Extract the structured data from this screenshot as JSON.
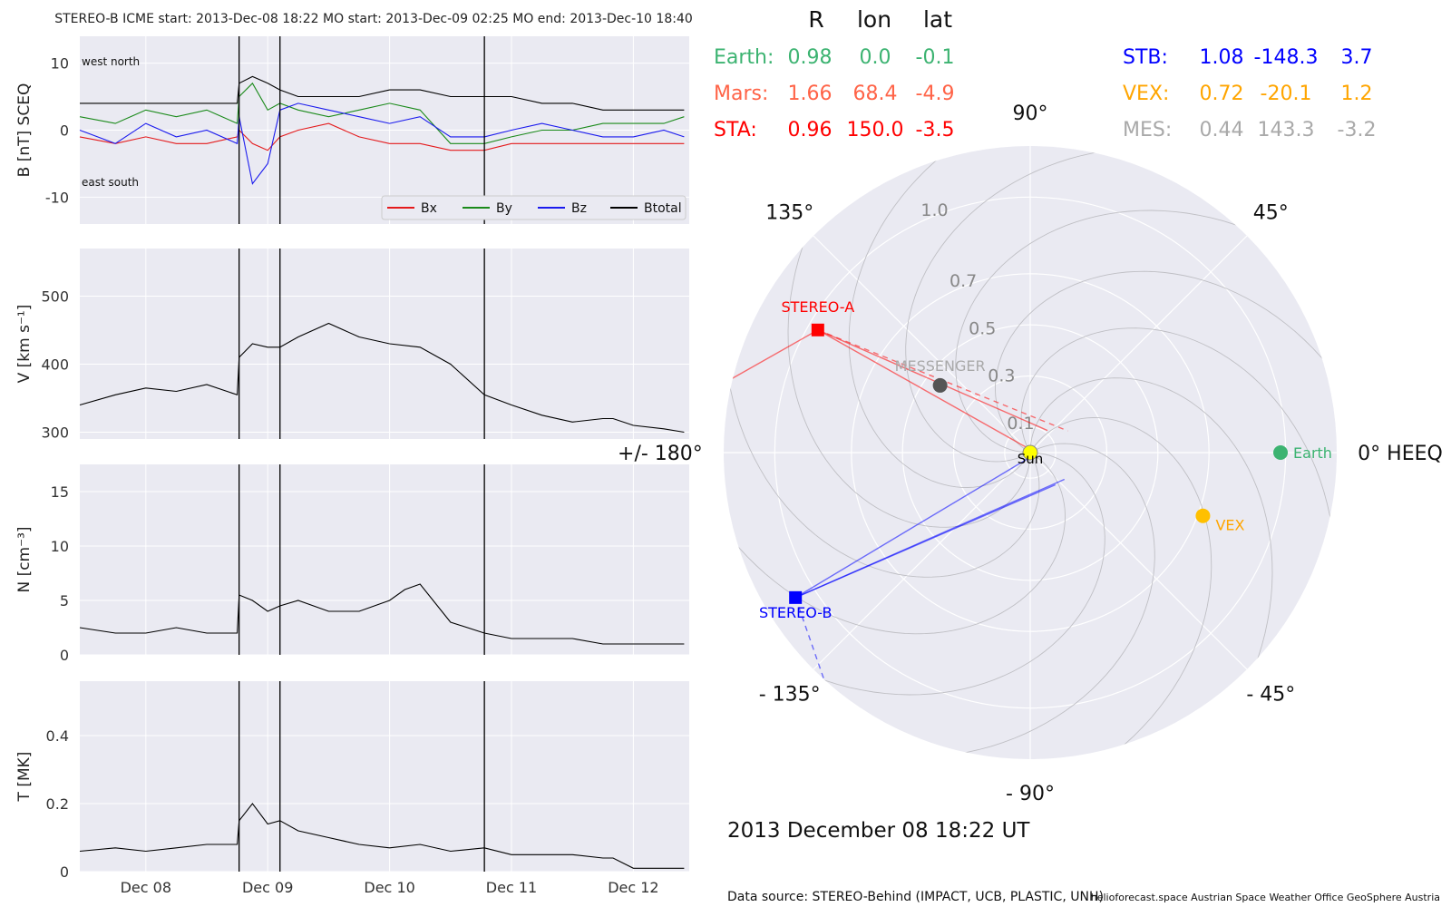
{
  "header": "STEREO-B    ICME start: 2013-Dec-08 18:22   MO start: 2013-Dec-09 02:25   MO end: 2013-Dec-10 18:40",
  "footer": {
    "source": "Data source: STEREO-Behind (IMPACT, UCB, PLASTIC, UNH)",
    "credits": "helioforecast.space   Austrian Space Weather Office   GeoSphere Austria"
  },
  "time_axis": {
    "start": "2013-12-07T11:00",
    "end": "2013-12-12T11:00",
    "ticks": [
      {
        "label": "Dec 08",
        "t": "2013-12-08T00:00"
      },
      {
        "label": "Dec 09",
        "t": "2013-12-09T00:00"
      },
      {
        "label": "Dec 10",
        "t": "2013-12-10T00:00"
      },
      {
        "label": "Dec 11",
        "t": "2013-12-11T00:00"
      },
      {
        "label": "Dec 12",
        "t": "2013-12-12T00:00"
      }
    ],
    "event_lines": [
      "2013-12-08T18:22",
      "2013-12-09T02:25",
      "2013-12-10T18:40"
    ]
  },
  "chart_data": [
    {
      "type": "line",
      "id": "b-field",
      "ylabel": "B [nT] SCEQ",
      "ylim": [
        -14,
        14
      ],
      "yticks": [
        10,
        0,
        -10
      ],
      "grid": true,
      "corner_labels": {
        "top": "west    north",
        "bottom": "east    south"
      },
      "legend": "bottom-right",
      "x": [
        "2013-12-07T11:00",
        "2013-12-07T18:00",
        "2013-12-08T00:00",
        "2013-12-08T06:00",
        "2013-12-08T12:00",
        "2013-12-08T18:00",
        "2013-12-08T18:22",
        "2013-12-08T21:00",
        "2013-12-09T00:00",
        "2013-12-09T02:25",
        "2013-12-09T06:00",
        "2013-12-09T12:00",
        "2013-12-09T18:00",
        "2013-12-10T00:00",
        "2013-12-10T06:00",
        "2013-12-10T12:00",
        "2013-12-10T18:40",
        "2013-12-11T00:00",
        "2013-12-11T06:00",
        "2013-12-11T12:00",
        "2013-12-11T18:00",
        "2013-12-12T00:00",
        "2013-12-12T06:00",
        "2013-12-12T10:00"
      ],
      "series": [
        {
          "name": "Bx",
          "color": "#e41a1c",
          "values": [
            -1,
            -2,
            -1,
            -2,
            -2,
            -1,
            0,
            -2,
            -3,
            -1,
            0,
            1,
            -1,
            -2,
            -2,
            -3,
            -3,
            -2,
            -2,
            -2,
            -2,
            -2,
            -2,
            -2
          ]
        },
        {
          "name": "By",
          "color": "#1a8a1a",
          "values": [
            2,
            1,
            3,
            2,
            3,
            1,
            5,
            7,
            3,
            4,
            3,
            2,
            3,
            4,
            3,
            -2,
            -2,
            -1,
            0,
            0,
            1,
            1,
            1,
            2
          ]
        },
        {
          "name": "Bz",
          "color": "#1a1aee",
          "values": [
            0,
            -2,
            1,
            -1,
            0,
            -2,
            2,
            -8,
            -5,
            3,
            4,
            3,
            2,
            1,
            2,
            -1,
            -1,
            0,
            1,
            0,
            -1,
            -1,
            0,
            -1
          ]
        },
        {
          "name": "Btotal",
          "color": "#000000",
          "values": [
            4,
            4,
            4,
            4,
            4,
            4,
            7,
            8,
            7,
            6,
            5,
            5,
            5,
            6,
            6,
            5,
            5,
            5,
            4,
            4,
            3,
            3,
            3,
            3
          ]
        }
      ]
    },
    {
      "type": "line",
      "id": "speed",
      "ylabel": "V [km s⁻¹]",
      "ylim": [
        290,
        570
      ],
      "yticks": [
        500,
        400,
        300
      ],
      "grid": true,
      "series": [
        {
          "name": "",
          "color": "#000000",
          "x": [
            "2013-12-07T11:00",
            "2013-12-07T18:00",
            "2013-12-08T00:00",
            "2013-12-08T06:00",
            "2013-12-08T12:00",
            "2013-12-08T18:00",
            "2013-12-08T18:22",
            "2013-12-08T21:00",
            "2013-12-09T00:00",
            "2013-12-09T02:25",
            "2013-12-09T06:00",
            "2013-12-09T12:00",
            "2013-12-09T18:00",
            "2013-12-10T00:00",
            "2013-12-10T06:00",
            "2013-12-10T12:00",
            "2013-12-10T18:40",
            "2013-12-11T00:00",
            "2013-12-11T06:00",
            "2013-12-11T12:00",
            "2013-12-11T18:00",
            "2013-12-11T20:00",
            "2013-12-12T00:00",
            "2013-12-12T06:00",
            "2013-12-12T10:00"
          ],
          "values": [
            340,
            355,
            365,
            360,
            370,
            355,
            410,
            430,
            425,
            425,
            440,
            460,
            440,
            430,
            425,
            400,
            355,
            340,
            325,
            315,
            320,
            320,
            310,
            305,
            300
          ]
        }
      ]
    },
    {
      "type": "line",
      "id": "density",
      "ylabel": "N [cm⁻³]",
      "ylim": [
        0,
        17.5
      ],
      "yticks": [
        15,
        10,
        5,
        0
      ],
      "grid": true,
      "series": [
        {
          "name": "",
          "color": "#000000",
          "x": [
            "2013-12-07T11:00",
            "2013-12-07T18:00",
            "2013-12-08T00:00",
            "2013-12-08T06:00",
            "2013-12-08T12:00",
            "2013-12-08T18:00",
            "2013-12-08T18:22",
            "2013-12-08T21:00",
            "2013-12-09T00:00",
            "2013-12-09T02:25",
            "2013-12-09T06:00",
            "2013-12-09T12:00",
            "2013-12-09T18:00",
            "2013-12-10T00:00",
            "2013-12-10T03:00",
            "2013-12-10T06:00",
            "2013-12-10T12:00",
            "2013-12-10T18:40",
            "2013-12-11T00:00",
            "2013-12-11T06:00",
            "2013-12-11T12:00",
            "2013-12-11T18:00",
            "2013-12-11T20:00",
            "2013-12-12T00:00",
            "2013-12-12T06:00",
            "2013-12-12T10:00"
          ],
          "values": [
            2.5,
            2,
            2,
            2.5,
            2,
            2,
            5.5,
            5,
            4,
            4.5,
            5,
            4,
            4,
            5,
            6,
            6.5,
            3,
            2,
            1.5,
            1.5,
            1.5,
            1,
            1,
            1,
            1,
            1
          ]
        }
      ]
    },
    {
      "type": "line",
      "id": "temperature",
      "ylabel": "T [MK]",
      "ylim": [
        0,
        0.56
      ],
      "yticks": [
        0.4,
        0.2,
        0.0
      ],
      "grid": true,
      "series": [
        {
          "name": "",
          "color": "#000000",
          "x": [
            "2013-12-07T11:00",
            "2013-12-07T18:00",
            "2013-12-08T00:00",
            "2013-12-08T06:00",
            "2013-12-08T12:00",
            "2013-12-08T18:00",
            "2013-12-08T18:22",
            "2013-12-08T21:00",
            "2013-12-09T00:00",
            "2013-12-09T02:25",
            "2013-12-09T06:00",
            "2013-12-09T12:00",
            "2013-12-09T18:00",
            "2013-12-10T00:00",
            "2013-12-10T06:00",
            "2013-12-10T12:00",
            "2013-12-10T18:40",
            "2013-12-11T00:00",
            "2013-12-11T06:00",
            "2013-12-11T12:00",
            "2013-12-11T18:00",
            "2013-12-11T20:00",
            "2013-12-12T00:00",
            "2013-12-12T06:00",
            "2013-12-12T10:00"
          ],
          "values": [
            0.06,
            0.07,
            0.06,
            0.07,
            0.08,
            0.08,
            0.15,
            0.2,
            0.14,
            0.15,
            0.12,
            0.1,
            0.08,
            0.07,
            0.08,
            0.06,
            0.07,
            0.05,
            0.05,
            0.05,
            0.04,
            0.04,
            0.01,
            0.01,
            0.01
          ]
        }
      ]
    }
  ],
  "polar": {
    "rmax": 1.2,
    "radial_tick_labels": [
      "0.1",
      "0.3",
      "0.5",
      "0.7",
      "1.0"
    ],
    "radial_tick_values": [
      0.1,
      0.3,
      0.5,
      0.7,
      1.0
    ],
    "angle_labels": [
      {
        "label": "0° HEEQ",
        "deg": 0
      },
      {
        "label": "45°",
        "deg": 45
      },
      {
        "label": "90°",
        "deg": 90
      },
      {
        "label": "135°",
        "deg": 135
      },
      {
        "label": "+/- 180°",
        "deg": 180
      },
      {
        "label": "- 135°",
        "deg": -135
      },
      {
        "label": "- 90°",
        "deg": -90
      },
      {
        "label": "- 45°",
        "deg": -45
      }
    ],
    "bodies": [
      {
        "name": "Sun",
        "lon": 0,
        "r": 0,
        "color": "#ffff00",
        "shape": "circle"
      },
      {
        "name": "Earth",
        "lon": 0.0,
        "r": 0.98,
        "color": "#3cb371",
        "shape": "circle"
      },
      {
        "name": "VEX",
        "lon": -20.1,
        "r": 0.72,
        "color": "#ffc000",
        "shape": "circle"
      },
      {
        "name": "MESSENGER",
        "lon": 143.3,
        "r": 0.44,
        "color": "#555555",
        "shape": "circle"
      },
      {
        "name": "STEREO-A",
        "lon": 150.0,
        "r": 0.96,
        "color": "#ff0000",
        "shape": "square"
      },
      {
        "name": "STEREO-B",
        "lon": -148.3,
        "r": 1.08,
        "color": "#0000ff",
        "shape": "square"
      }
    ],
    "timestamp": "2013 December 08  18:22 UT"
  },
  "table": {
    "headers": [
      "R",
      "lon",
      "lat"
    ],
    "left": [
      {
        "name": "Earth:",
        "R": "0.98",
        "lon": "0.0",
        "lat": "-0.1",
        "color": "#3cb371"
      },
      {
        "name": "Mars:",
        "R": "1.66",
        "lon": "68.4",
        "lat": "-4.9",
        "color": "#ff6347"
      },
      {
        "name": "STA:",
        "R": "0.96",
        "lon": "150.0",
        "lat": "-3.5",
        "color": "#ff0000"
      }
    ],
    "right": [
      {
        "name": "STB:",
        "R": "1.08",
        "lon": "-148.3",
        "lat": "3.7",
        "color": "#0000ff"
      },
      {
        "name": "VEX:",
        "R": "0.72",
        "lon": "-20.1",
        "lat": "1.2",
        "color": "#ffa500"
      },
      {
        "name": "MES:",
        "R": "0.44",
        "lon": "143.3",
        "lat": "-3.2",
        "color": "#a9a9a9"
      }
    ]
  }
}
